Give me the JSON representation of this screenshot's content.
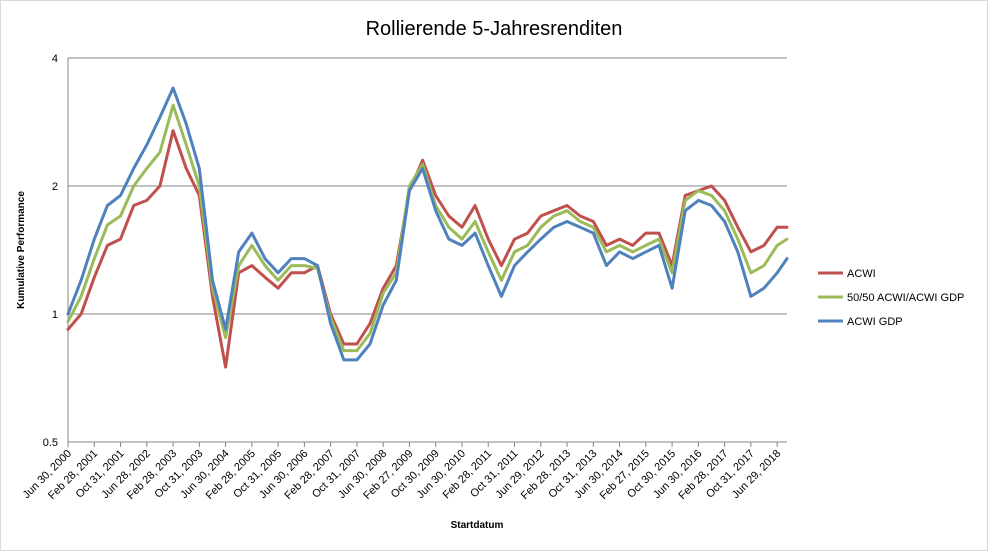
{
  "chart_data": {
    "type": "line",
    "title": "Rollierende 5-Jahresrenditen",
    "xlabel": "Startdatum",
    "ylabel": "Kumulative Performance",
    "y_scale": "log2",
    "ylim": [
      0.5,
      4
    ],
    "yticks": [
      "0.5",
      "1",
      "2",
      "4"
    ],
    "grid": "horizontal",
    "legend_position": "right",
    "x_tick_labels": [
      "Jun 30, 2000",
      "Feb 28, 2001",
      "Oct 31, 2001",
      "Jun 28, 2002",
      "Feb 28, 2003",
      "Oct 31, 2003",
      "Jun 30, 2004",
      "Feb 28, 2005",
      "Oct 31, 2005",
      "Jun 30, 2006",
      "Feb 28, 2007",
      "Oct 31, 2007",
      "Jun 30, 2008",
      "Feb 27, 2009",
      "Oct 30, 2009",
      "Jun 30, 2010",
      "Feb 28, 2011",
      "Oct 31, 2011",
      "Jun 29, 2012",
      "Feb 28, 2013",
      "Oct 31, 2013",
      "Jun 30, 2014",
      "Feb 27, 2015",
      "Oct 30, 2015",
      "Jun 30, 2016",
      "Feb 28, 2017",
      "Oct 31, 2017",
      "Jun 29, 2018"
    ],
    "x_months": [
      "2000-06",
      "2000-10",
      "2001-02",
      "2001-06",
      "2001-10",
      "2002-02",
      "2002-06",
      "2002-10",
      "2003-02",
      "2003-06",
      "2003-10",
      "2004-02",
      "2004-06",
      "2004-10",
      "2005-02",
      "2005-06",
      "2005-10",
      "2006-02",
      "2006-06",
      "2006-10",
      "2007-02",
      "2007-06",
      "2007-10",
      "2008-02",
      "2008-06",
      "2008-10",
      "2009-02",
      "2009-06",
      "2009-10",
      "2010-02",
      "2010-06",
      "2010-10",
      "2011-02",
      "2011-06",
      "2011-10",
      "2012-02",
      "2012-06",
      "2012-10",
      "2013-02",
      "2013-06",
      "2013-10",
      "2014-02",
      "2014-06",
      "2014-10",
      "2015-02",
      "2015-06",
      "2015-10",
      "2016-02",
      "2016-06",
      "2016-10",
      "2017-02",
      "2017-06",
      "2017-10",
      "2018-02",
      "2018-06",
      "2018-09"
    ],
    "series": [
      {
        "name": "ACWI",
        "color": "#c0504d",
        "values": [
          0.92,
          1.0,
          1.22,
          1.45,
          1.5,
          1.8,
          1.85,
          2.0,
          2.7,
          2.2,
          1.9,
          1.1,
          0.75,
          1.25,
          1.3,
          1.22,
          1.15,
          1.25,
          1.25,
          1.3,
          1.0,
          0.85,
          0.85,
          0.95,
          1.15,
          1.3,
          1.95,
          2.3,
          1.9,
          1.7,
          1.6,
          1.8,
          1.5,
          1.3,
          1.5,
          1.55,
          1.7,
          1.75,
          1.8,
          1.7,
          1.65,
          1.45,
          1.5,
          1.45,
          1.55,
          1.55,
          1.3,
          1.9,
          1.95,
          2.0,
          1.85,
          1.6,
          1.4,
          1.45,
          1.6,
          1.6
        ]
      },
      {
        "name": "50/50 ACWI/ACWI GDP",
        "color": "#9bbb59",
        "values": [
          0.96,
          1.1,
          1.35,
          1.62,
          1.7,
          2.0,
          2.2,
          2.4,
          3.1,
          2.5,
          2.0,
          1.15,
          0.88,
          1.3,
          1.45,
          1.3,
          1.2,
          1.3,
          1.3,
          1.28,
          0.98,
          0.82,
          0.82,
          0.9,
          1.12,
          1.25,
          2.0,
          2.25,
          1.8,
          1.6,
          1.5,
          1.65,
          1.4,
          1.2,
          1.4,
          1.45,
          1.6,
          1.7,
          1.75,
          1.65,
          1.6,
          1.4,
          1.45,
          1.4,
          1.45,
          1.5,
          1.25,
          1.85,
          1.95,
          1.9,
          1.75,
          1.5,
          1.25,
          1.3,
          1.45,
          1.5
        ]
      },
      {
        "name": "ACWI GDP",
        "color": "#4f81bd",
        "values": [
          1.0,
          1.2,
          1.5,
          1.8,
          1.9,
          2.2,
          2.5,
          2.9,
          3.4,
          2.8,
          2.2,
          1.2,
          0.92,
          1.4,
          1.55,
          1.35,
          1.25,
          1.35,
          1.35,
          1.3,
          0.95,
          0.78,
          0.78,
          0.85,
          1.05,
          1.2,
          1.95,
          2.2,
          1.75,
          1.5,
          1.45,
          1.55,
          1.3,
          1.1,
          1.3,
          1.4,
          1.5,
          1.6,
          1.65,
          1.6,
          1.55,
          1.3,
          1.4,
          1.35,
          1.4,
          1.45,
          1.15,
          1.75,
          1.85,
          1.8,
          1.65,
          1.4,
          1.1,
          1.15,
          1.25,
          1.35
        ]
      }
    ]
  }
}
